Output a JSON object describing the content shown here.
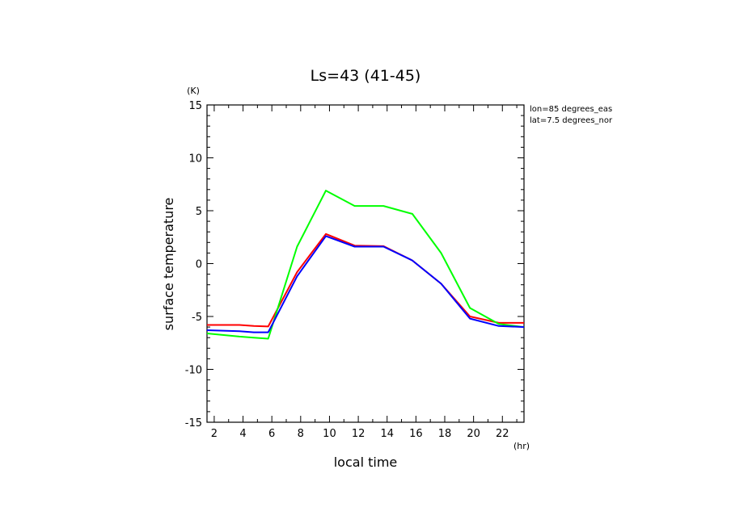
{
  "chart_data": {
    "type": "line",
    "title": "Ls=43 (41-45)",
    "xlabel": "local time",
    "ylabel": "surface temperature",
    "x_unit": "(hr)",
    "y_unit": "(K)",
    "xlim": [
      1.5,
      23.5
    ],
    "ylim": [
      -15,
      15
    ],
    "xticks": [
      2,
      4,
      6,
      8,
      10,
      12,
      14,
      16,
      18,
      20,
      22
    ],
    "yticks": [
      -15,
      -10,
      -5,
      0,
      5,
      10,
      15
    ],
    "grid": false,
    "annotations": [
      "lon=85 degrees_eas",
      "lat=7.5 degrees_nor"
    ],
    "x": [
      1.5,
      3.75,
      4.75,
      5.75,
      7.75,
      9.75,
      11.75,
      13.75,
      15.75,
      17.75,
      19.75,
      21.75,
      23.5
    ],
    "series": [
      {
        "color": "#ff0000",
        "values": [
          -5.8,
          -5.8,
          -5.9,
          -5.95,
          -0.8,
          2.8,
          1.7,
          1.65,
          0.3,
          -1.9,
          -5.0,
          -5.6,
          -5.6
        ]
      },
      {
        "color": "#00ff00",
        "values": [
          -6.6,
          -6.9,
          -7.0,
          -7.1,
          1.6,
          6.9,
          5.45,
          5.45,
          4.7,
          1.0,
          -4.2,
          -5.7,
          -6.0
        ]
      },
      {
        "color": "#0000ff",
        "values": [
          -6.3,
          -6.4,
          -6.5,
          -6.5,
          -1.2,
          2.6,
          1.6,
          1.6,
          0.3,
          -1.9,
          -5.2,
          -5.9,
          -6.0
        ]
      }
    ]
  }
}
